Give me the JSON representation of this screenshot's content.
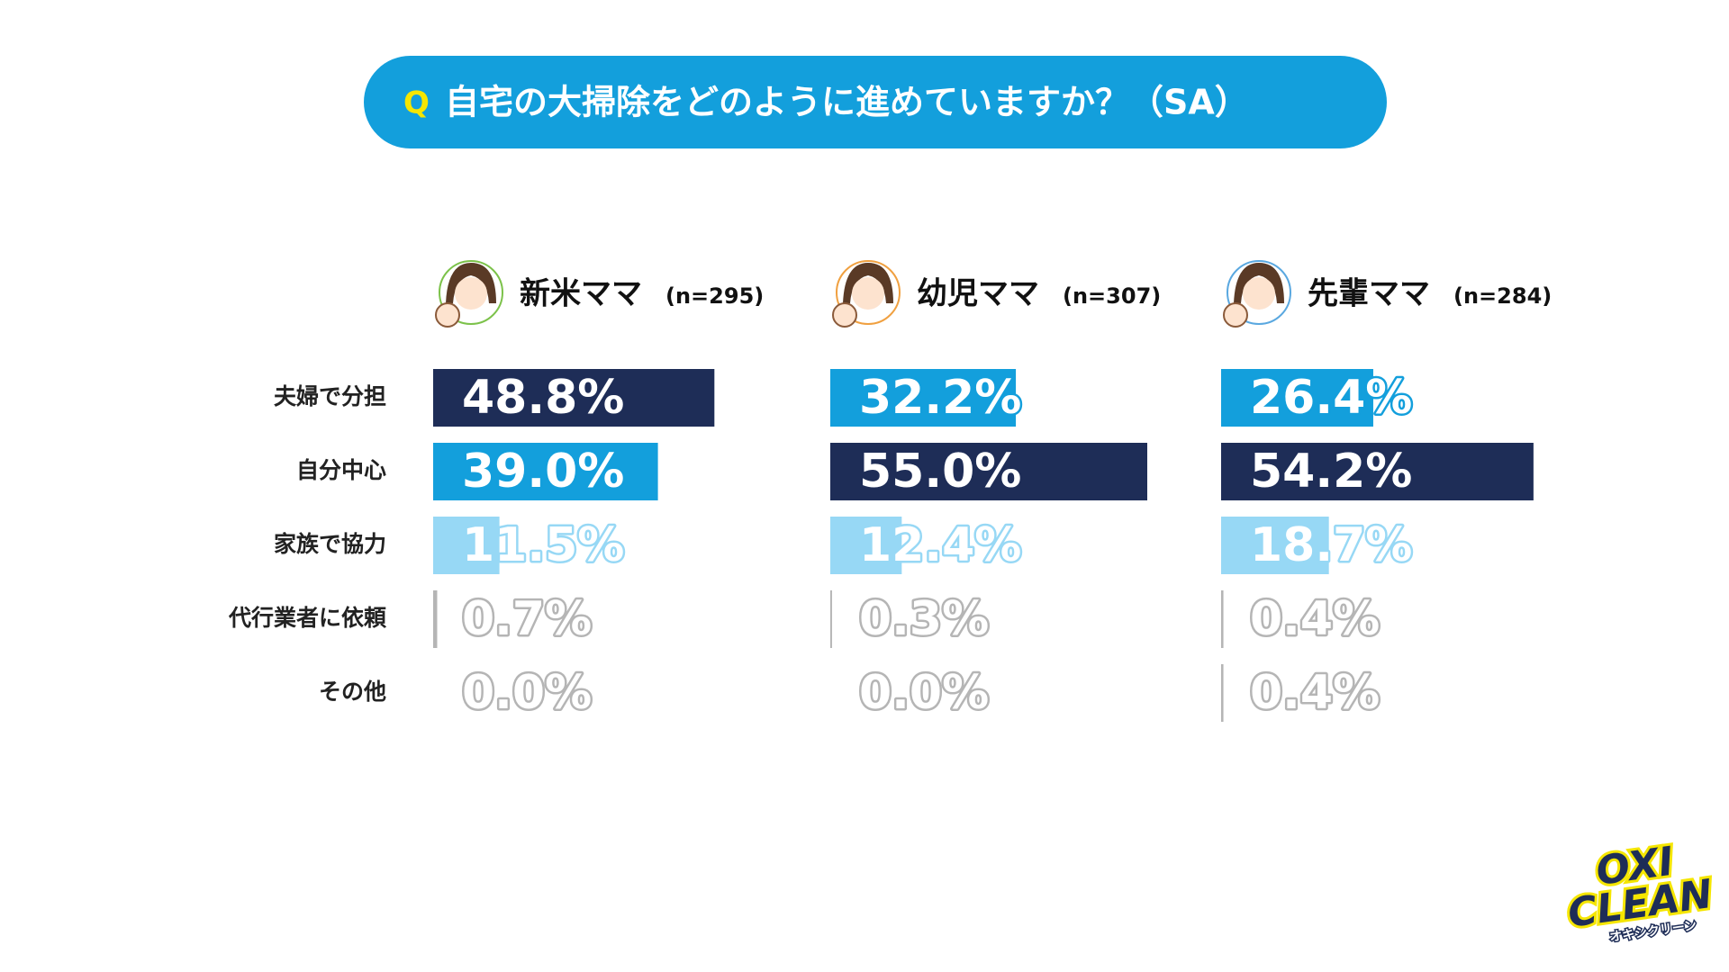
{
  "chart_data": {
    "type": "bar",
    "title_q": "Q",
    "title": "自宅の大掃除をどのように進めていますか？（SA）",
    "categories": [
      "夫婦で分担",
      "自分中心",
      "家族で協力",
      "代行業者に依頼",
      "その他"
    ],
    "series": [
      {
        "name": "新米ママ",
        "n_label": "(n=295)",
        "values": [
          48.8,
          39.0,
          11.5,
          0.7,
          0.0
        ],
        "value_labels": [
          "48.8%",
          "39.0%",
          "11.5%",
          "0.7%",
          "0.0%"
        ],
        "colors": [
          "#1e2d57",
          "#139fdc",
          "#97d8f5",
          "#b5b5b5",
          "#b5b5b5"
        ],
        "icon_color": "#7cc24a"
      },
      {
        "name": "幼児ママ",
        "n_label": "(n=307)",
        "values": [
          32.2,
          55.0,
          12.4,
          0.3,
          0.0
        ],
        "value_labels": [
          "32.2%",
          "55.0%",
          "12.4%",
          "0.3%",
          "0.0%"
        ],
        "colors": [
          "#139fdc",
          "#1e2d57",
          "#97d8f5",
          "#b5b5b5",
          "#b5b5b5"
        ],
        "icon_color": "#f0a040"
      },
      {
        "name": "先輩ママ",
        "n_label": "(n=284)",
        "values": [
          26.4,
          54.2,
          18.7,
          0.4,
          0.4
        ],
        "value_labels": [
          "26.4%",
          "54.2%",
          "18.7%",
          "0.4%",
          "0.4%"
        ],
        "colors": [
          "#139fdc",
          "#1e2d57",
          "#97d8f5",
          "#b5b5b5",
          "#b5b5b5"
        ],
        "icon_color": "#5aa8e0"
      }
    ],
    "logo": {
      "top": "OXI",
      "bottom": "CLEAN",
      "sub": "オキシクリーン"
    }
  }
}
